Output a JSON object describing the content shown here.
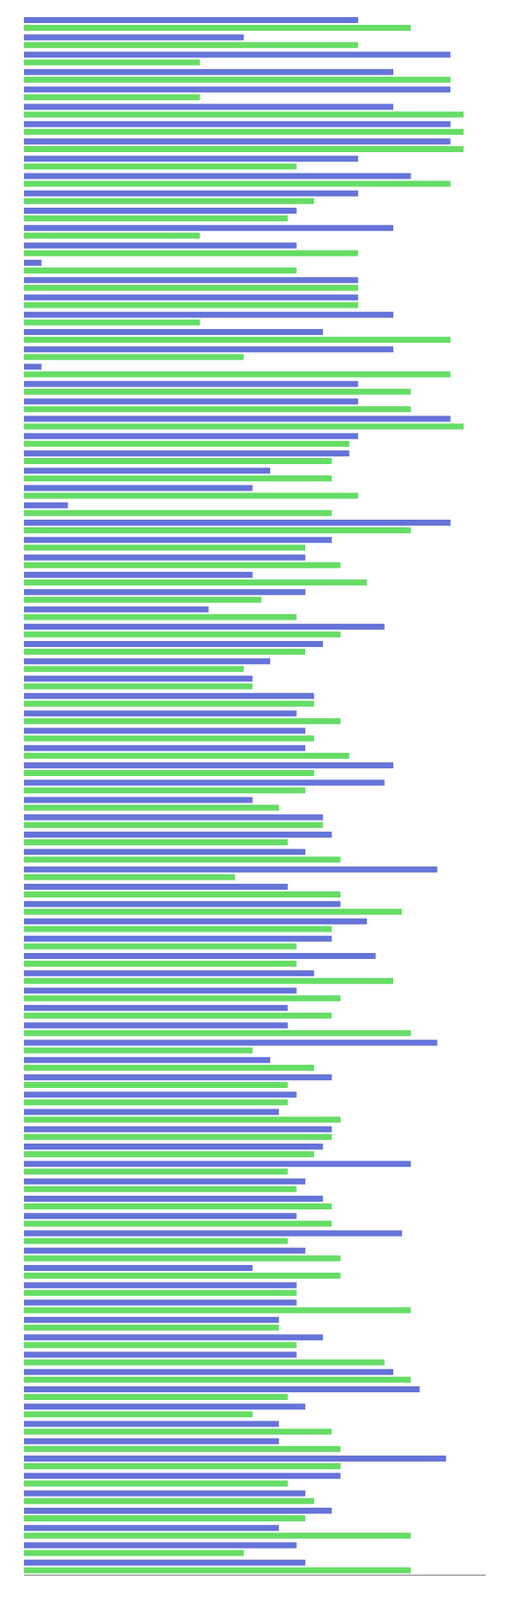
{
  "chart_data": {
    "type": "bar",
    "orientation": "horizontal",
    "tick_labels": false,
    "grid": false,
    "xlim": [
      0,
      1.05
    ],
    "categories": [
      null,
      null,
      null,
      null,
      null,
      null,
      null,
      null,
      null,
      null,
      null,
      null,
      null,
      null,
      null,
      null,
      null,
      null,
      null,
      null,
      null,
      null,
      null,
      null,
      null,
      null,
      null,
      null,
      null,
      null,
      null,
      null,
      null,
      null,
      null,
      null,
      null,
      null,
      null,
      null,
      null,
      null,
      null,
      null,
      null,
      null,
      null,
      null,
      null,
      null,
      null,
      null,
      null,
      null,
      null,
      null,
      null,
      null,
      null,
      null,
      null,
      null,
      null,
      null,
      null,
      null,
      null,
      null,
      null,
      null,
      null,
      null,
      null,
      null,
      null,
      null,
      null,
      null,
      null,
      null,
      null,
      null,
      null,
      null,
      null,
      null,
      null,
      null,
      null,
      null
    ],
    "series": [
      {
        "color": "#6674d9",
        "values": [
          0.76,
          0.5,
          0.97,
          0.84,
          0.97,
          0.84,
          0.97,
          0.97,
          0.76,
          0.88,
          0.76,
          0.62,
          0.84,
          0.62,
          0.04,
          0.76,
          0.76,
          0.84,
          0.68,
          0.84,
          0.04,
          0.76,
          0.76,
          0.97,
          0.76,
          0.74,
          0.56,
          0.52,
          0.1,
          0.97,
          0.7,
          0.64,
          0.52,
          0.64,
          0.42,
          0.82,
          0.68,
          0.56,
          0.52,
          0.66,
          0.62,
          0.64,
          0.64,
          0.84,
          0.82,
          0.52,
          0.68,
          0.7,
          0.64,
          0.94,
          0.6,
          0.72,
          0.78,
          0.7,
          0.8,
          0.66,
          0.62,
          0.6,
          0.6,
          0.94,
          0.56,
          0.7,
          0.62,
          0.58,
          0.7,
          0.68,
          0.88,
          0.64,
          0.68,
          0.62,
          0.86,
          0.64,
          0.52,
          0.62,
          0.62,
          0.58,
          0.68,
          0.62,
          0.84,
          0.9,
          0.64,
          0.58,
          0.58,
          0.96,
          0.72,
          0.64,
          0.7,
          0.58,
          0.62,
          0.64
        ]
      },
      {
        "color": "#66dd66",
        "values": [
          0.88,
          0.76,
          0.4,
          0.97,
          0.4,
          1.0,
          1.0,
          1.0,
          0.62,
          0.97,
          0.66,
          0.6,
          0.4,
          0.76,
          0.62,
          0.76,
          0.76,
          0.4,
          0.97,
          0.5,
          0.97,
          0.88,
          0.88,
          1.0,
          0.74,
          0.7,
          0.7,
          0.76,
          0.7,
          0.88,
          0.64,
          0.72,
          0.78,
          0.54,
          0.62,
          0.72,
          0.64,
          0.5,
          0.52,
          0.66,
          0.72,
          0.66,
          0.74,
          0.66,
          0.64,
          0.58,
          0.68,
          0.6,
          0.72,
          0.48,
          0.72,
          0.86,
          0.7,
          0.62,
          0.62,
          0.84,
          0.72,
          0.7,
          0.88,
          0.52,
          0.66,
          0.6,
          0.6,
          0.72,
          0.7,
          0.66,
          0.6,
          0.62,
          0.7,
          0.7,
          0.6,
          0.72,
          0.72,
          0.62,
          0.88,
          0.58,
          0.62,
          0.82,
          0.88,
          0.6,
          0.52,
          0.7,
          0.72,
          0.72,
          0.6,
          0.66,
          0.64,
          0.88,
          0.5,
          0.88
        ]
      }
    ]
  }
}
